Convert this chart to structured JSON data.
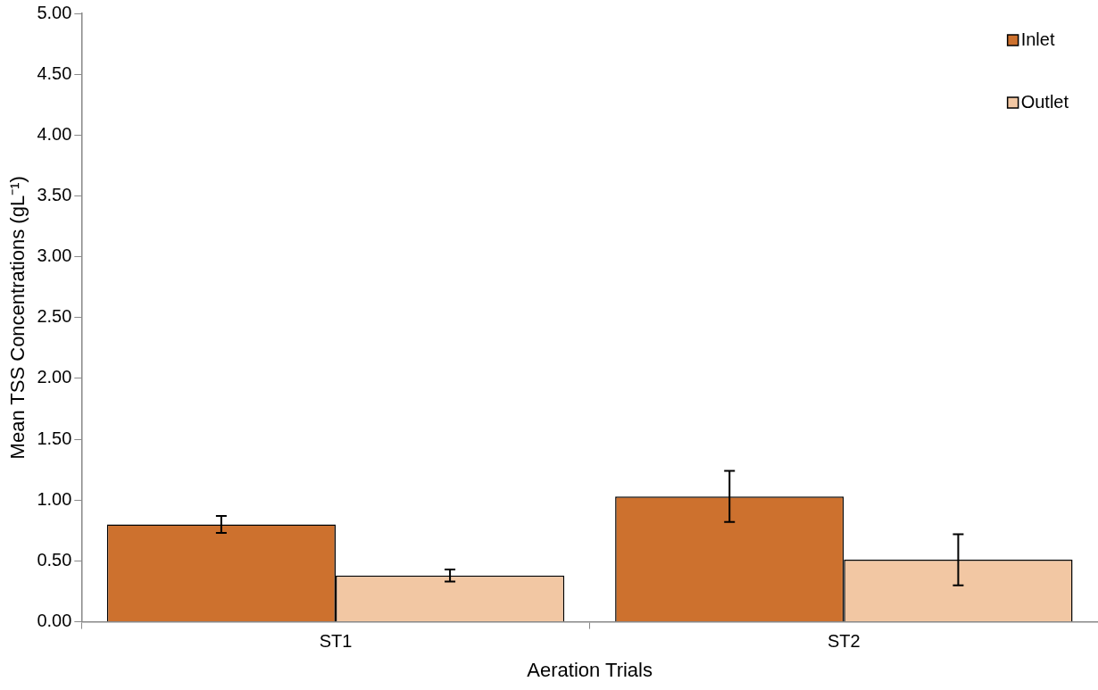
{
  "chart_data": {
    "type": "bar",
    "xlabel": "Aeration Trials",
    "ylabel": "Mean TSS Concentrations (gL⁻¹)",
    "categories": [
      "ST1",
      "ST2"
    ],
    "series": [
      {
        "name": "Inlet",
        "color": "#cd712e",
        "values": [
          0.8,
          1.03
        ],
        "errors": [
          0.07,
          0.21
        ]
      },
      {
        "name": "Outlet",
        "color": "#f2c7a3",
        "values": [
          0.38,
          0.51
        ],
        "errors": [
          0.05,
          0.21
        ]
      }
    ],
    "ylim": [
      0,
      5
    ],
    "yticks": [
      {
        "value": 0,
        "label": "0.00"
      },
      {
        "value": 0.5,
        "label": "0.50"
      },
      {
        "value": 1,
        "label": "1.00"
      },
      {
        "value": 1.5,
        "label": "1.50"
      },
      {
        "value": 2,
        "label": "2.00"
      },
      {
        "value": 2.5,
        "label": "2.50"
      },
      {
        "value": 3,
        "label": "3.00"
      },
      {
        "value": 3.5,
        "label": "3.50"
      },
      {
        "value": 4,
        "label": "4.00"
      },
      {
        "value": 4.5,
        "label": "4.50"
      },
      {
        "value": 5,
        "label": "5.00"
      }
    ],
    "grid": false,
    "legend": "top right"
  }
}
